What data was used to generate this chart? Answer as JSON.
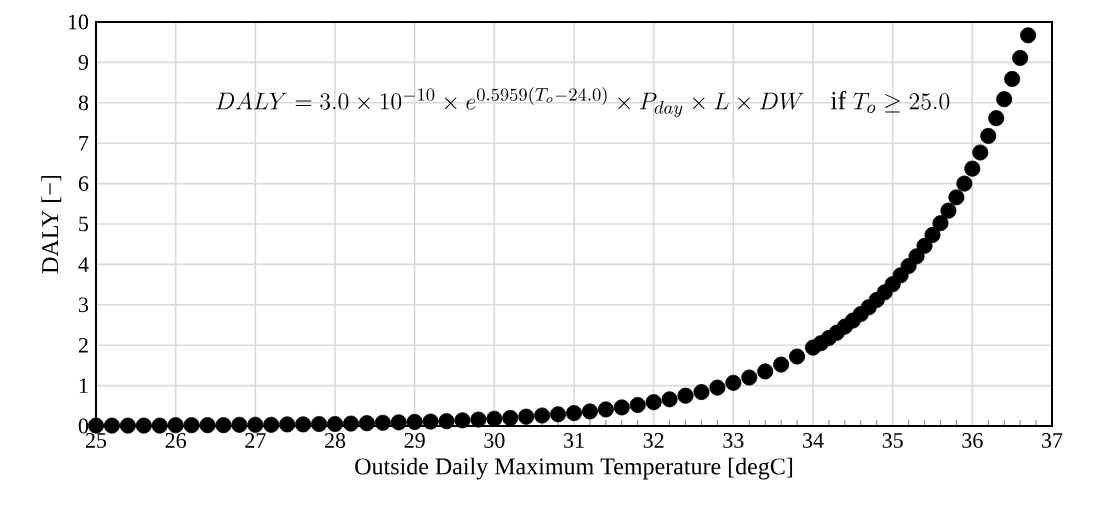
{
  "chart_data": {
    "type": "scatter",
    "xlabel": "Outside Daily Maximum Temperature [degC]",
    "ylabel": "DALY [−]",
    "annotations": [
      "DALY = 3.0\\times 10^{-10}\\times e^{0.5959(T_o-24.0)}\\times P_{day}\\times L\\times DW\\quad \\mathrm{if}\\ T_o\\geq 25.0"
    ],
    "x": [
      25.0,
      25.2,
      25.4,
      25.6,
      25.8,
      26.0,
      26.2,
      26.4,
      26.6,
      26.8,
      27.0,
      27.2,
      27.4,
      27.6,
      27.8,
      28.0,
      28.2,
      28.4,
      28.6,
      28.8,
      29.0,
      29.2,
      29.4,
      29.6,
      29.8,
      30.0,
      30.2,
      30.4,
      30.6,
      30.8,
      31.0,
      31.2,
      31.4,
      31.6,
      31.8,
      32.0,
      32.2,
      32.4,
      32.6,
      32.8,
      33.0,
      33.2,
      33.4,
      33.6,
      33.8,
      34.0,
      34.1,
      34.2,
      34.3,
      34.4,
      34.5,
      34.6,
      34.7,
      34.8,
      34.9,
      35.0,
      35.1,
      35.2,
      35.3,
      35.4,
      35.5,
      35.6,
      35.7,
      35.8,
      35.9,
      36.0,
      36.1,
      36.2,
      36.3,
      36.4,
      36.5,
      36.6,
      36.7
    ],
    "values": [
      0.01,
      0.01,
      0.01,
      0.01,
      0.01,
      0.02,
      0.02,
      0.02,
      0.02,
      0.03,
      0.03,
      0.03,
      0.04,
      0.04,
      0.05,
      0.05,
      0.06,
      0.07,
      0.08,
      0.09,
      0.1,
      0.11,
      0.12,
      0.14,
      0.16,
      0.18,
      0.2,
      0.23,
      0.26,
      0.29,
      0.32,
      0.36,
      0.41,
      0.46,
      0.52,
      0.59,
      0.66,
      0.75,
      0.84,
      0.95,
      1.07,
      1.2,
      1.35,
      1.52,
      1.72,
      1.94,
      2.05,
      2.18,
      2.31,
      2.46,
      2.61,
      2.77,
      2.94,
      3.12,
      3.31,
      3.51,
      3.73,
      3.96,
      4.2,
      4.46,
      4.73,
      5.02,
      5.33,
      5.66,
      6.0,
      6.37,
      6.77,
      7.18,
      7.62,
      8.09,
      8.59,
      9.11,
      9.67
    ],
    "color": "#000000",
    "marker": "circle",
    "xlim": [
      25,
      37
    ],
    "xticks": [
      25,
      26,
      27,
      28,
      29,
      30,
      31,
      32,
      33,
      34,
      35,
      36,
      37
    ],
    "ylim": [
      0,
      10
    ],
    "yticks": [
      0,
      1,
      2,
      3,
      4,
      5,
      6,
      7,
      8,
      9,
      10
    ],
    "grid": true
  }
}
